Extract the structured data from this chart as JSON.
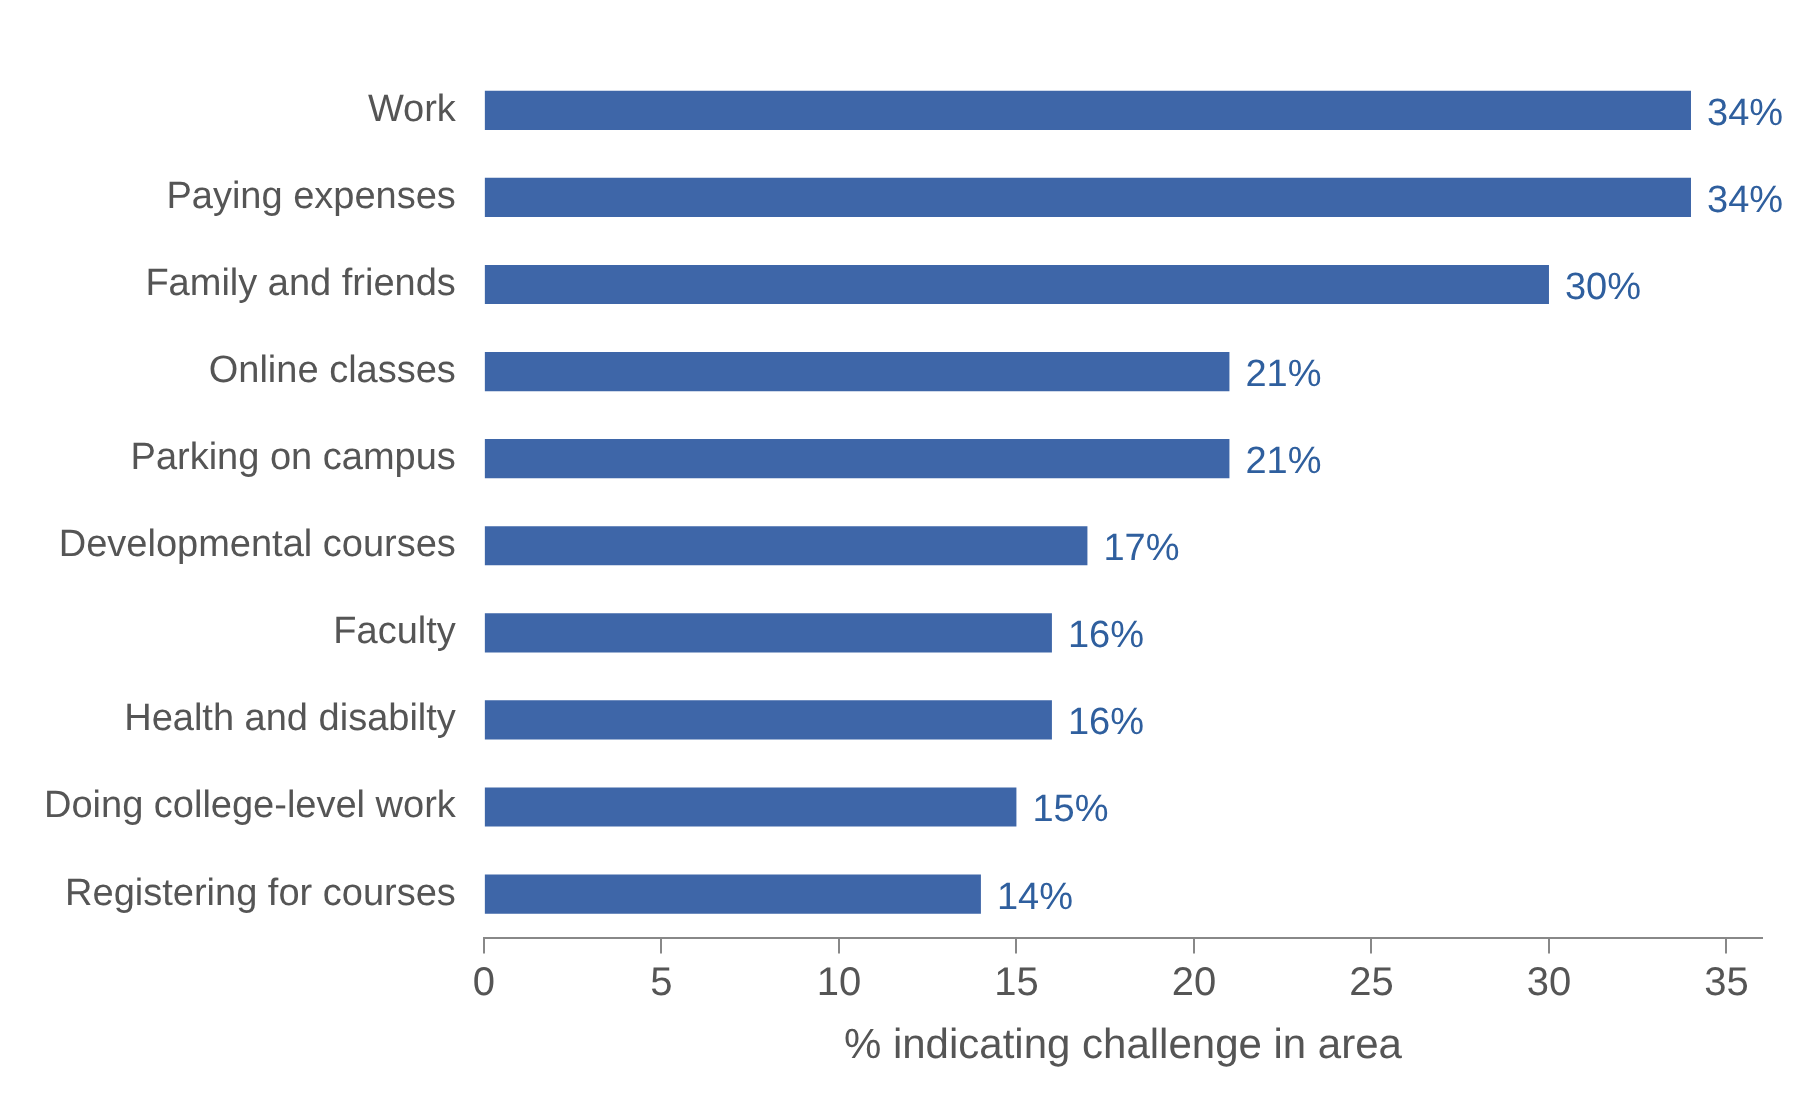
{
  "chart_data": {
    "type": "bar",
    "orientation": "horizontal",
    "xlabel": "% indicating challenge in area",
    "categories": [
      "Work",
      "Paying expenses",
      "Family and friends",
      "Online classes",
      "Parking on campus",
      "Developmental courses",
      "Faculty",
      "Health and disabilty",
      "Doing college-level work",
      "Registering for courses"
    ],
    "values": [
      34,
      34,
      30,
      21,
      21,
      17,
      16,
      16,
      15,
      14
    ],
    "value_labels": [
      "34%",
      "34%",
      "30%",
      "21%",
      "21%",
      "17%",
      "16%",
      "16%",
      "15%",
      "14%"
    ],
    "color": "#3e66a8",
    "xlim": [
      0,
      36
    ],
    "xticks": [
      0,
      5,
      10,
      15,
      20,
      25,
      30,
      35
    ],
    "grid": false,
    "legend": false
  }
}
